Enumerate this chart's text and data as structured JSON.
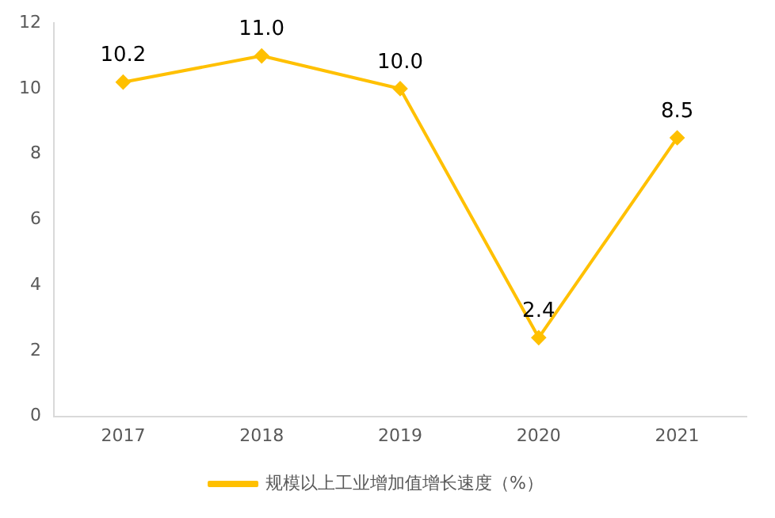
{
  "chart_data": {
    "type": "line",
    "categories": [
      "2017",
      "2018",
      "2019",
      "2020",
      "2021"
    ],
    "series": [
      {
        "name": "规模以上工业增加值增长速度（%）",
        "color": "#ffc000",
        "values": [
          10.2,
          11.0,
          10.0,
          2.4,
          8.5
        ],
        "value_labels": [
          "10.2",
          "11.0",
          "10.0",
          "2.4",
          "8.5"
        ]
      }
    ],
    "ylim": [
      0,
      12
    ],
    "yticks": [
      0,
      2,
      4,
      6,
      8,
      10,
      12
    ],
    "grid": false,
    "legend": "bottom",
    "marker": "diamond",
    "line_style": "solid"
  }
}
